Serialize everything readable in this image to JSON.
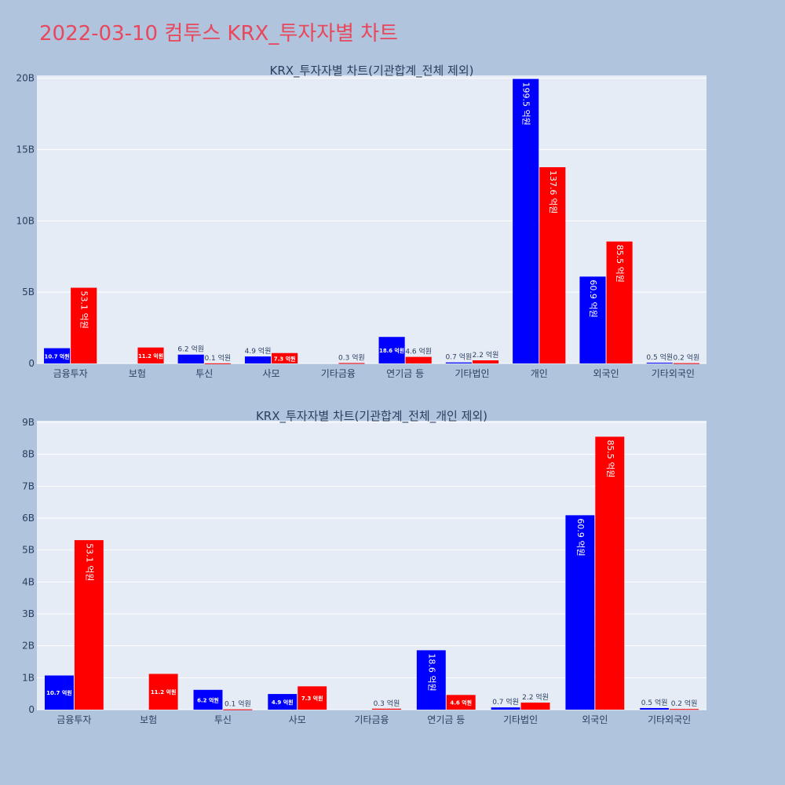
{
  "page": {
    "title": "2022-03-10 컴투스 KRX_투자자별 차트"
  },
  "colors": {
    "background": "#b0c4de",
    "plot_background": "#e5ecf6",
    "grid": "#ffffff",
    "text": "#2a3f5f",
    "title": "#e8475c",
    "sell": "#0000ff",
    "buy": "#ff0000"
  },
  "chart_data": [
    {
      "type": "bar",
      "title": "KRX_투자자별 차트(기관합계_전체 제외)",
      "categories": [
        "금융투자",
        "보험",
        "투신",
        "사모",
        "기타금융",
        "연기금 등",
        "기타법인",
        "개인",
        "외국인",
        "기타외국인"
      ],
      "ylim": [
        0,
        20.2
      ],
      "ytick_values": [
        0,
        5,
        10,
        15,
        20
      ],
      "ytick_labels": [
        "0",
        "5B",
        "10B",
        "15B",
        "20B"
      ],
      "grid": true,
      "series": [
        {
          "color": "#0000ff",
          "values": [
            1.07,
            0,
            0.62,
            0.49,
            0,
            1.86,
            0.07,
            19.95,
            6.09,
            0.05
          ],
          "labels": [
            "10.7 억원",
            "",
            "6.2 억원",
            "4.9 억원",
            "",
            "18.6 억원",
            "0.7 억원",
            "199.5 억원",
            "60.9 억원",
            "0.5 억원"
          ]
        },
        {
          "color": "#ff0000",
          "values": [
            5.31,
            1.12,
            0.01,
            0.73,
            0.03,
            0.46,
            0.22,
            13.76,
            8.55,
            0.02
          ],
          "labels": [
            "53.1 억원",
            "11.2 억원",
            "0.1 억원",
            "7.3 억원",
            "0.3 억원",
            "4.6 억원",
            "2.2 억원",
            "137.6 억원",
            "85.5 억원",
            "0.2 억원"
          ]
        }
      ]
    },
    {
      "type": "bar",
      "title": "KRX_투자자별 차트(기관합계_전체_개인 제외)",
      "categories": [
        "금융투자",
        "보험",
        "투신",
        "사모",
        "기타금융",
        "연기금 등",
        "기타법인",
        "외국인",
        "기타외국인"
      ],
      "ylim": [
        0,
        9.05
      ],
      "ytick_values": [
        0,
        1,
        2,
        3,
        4,
        5,
        6,
        7,
        8,
        9
      ],
      "ytick_labels": [
        "0",
        "1B",
        "2B",
        "3B",
        "4B",
        "5B",
        "6B",
        "7B",
        "8B",
        "9B"
      ],
      "grid": true,
      "series": [
        {
          "color": "#0000ff",
          "values": [
            1.07,
            0,
            0.62,
            0.49,
            0,
            1.86,
            0.07,
            6.09,
            0.05
          ],
          "labels": [
            "10.7 억원",
            "",
            "6.2 억원",
            "4.9 억원",
            "",
            "18.6 억원",
            "0.7 억원",
            "60.9 억원",
            "0.5 억원"
          ]
        },
        {
          "color": "#ff0000",
          "values": [
            5.31,
            1.12,
            0.01,
            0.73,
            0.03,
            0.46,
            0.22,
            8.55,
            0.02
          ],
          "labels": [
            "53.1 억원",
            "11.2 억원",
            "0.1 억원",
            "7.3 억원",
            "0.3 억원",
            "4.6 억원",
            "2.2 억원",
            "85.5 억원",
            "0.2 억원"
          ]
        }
      ]
    }
  ]
}
